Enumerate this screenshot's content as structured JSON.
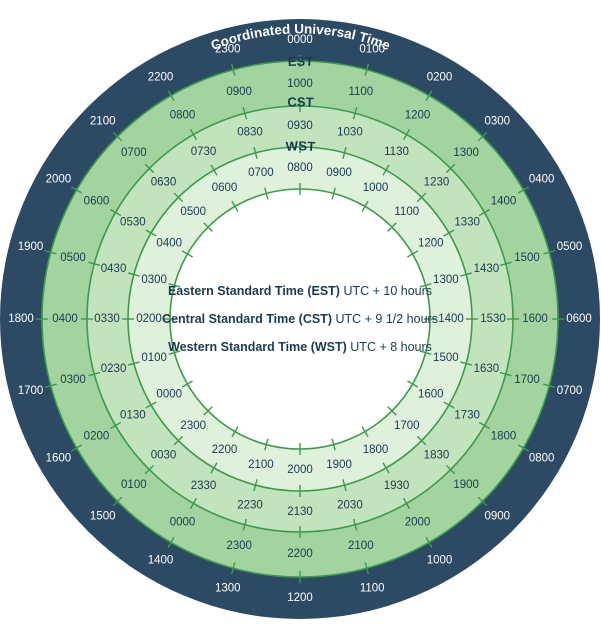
{
  "title": "Coordinated Universal Time",
  "colors": {
    "utc_ring": "#2d4a64",
    "est_ring": "#a3d49f",
    "cst_ring": "#c2e4bd",
    "wst_ring": "#dff1db",
    "center": "#ffffff",
    "divider": "#3e9a4e",
    "utc_text": "#ffffff",
    "ring_text": "#1a3a52"
  },
  "rings": [
    {
      "id": "utc",
      "title": "",
      "labels": [
        "0000",
        "0100",
        "0200",
        "0300",
        "0400",
        "0500",
        "0600",
        "0700",
        "0800",
        "0900",
        "1000",
        "1100",
        "1200",
        "1300",
        "1400",
        "1500",
        "1600",
        "1700",
        "1800",
        "1900",
        "2000",
        "2100",
        "2200",
        "2300"
      ]
    },
    {
      "id": "est",
      "title": "EST",
      "labels": [
        "1000",
        "1100",
        "1200",
        "1300",
        "1400",
        "1500",
        "1600",
        "1700",
        "1800",
        "1900",
        "2000",
        "2100",
        "2200",
        "2300",
        "0000",
        "0100",
        "0200",
        "0300",
        "0400",
        "0500",
        "0600",
        "0700",
        "0800",
        "0900"
      ]
    },
    {
      "id": "cst",
      "title": "CST",
      "labels": [
        "0930",
        "1030",
        "1130",
        "1230",
        "1330",
        "1430",
        "1530",
        "1630",
        "1730",
        "1830",
        "1930",
        "2030",
        "2130",
        "2230",
        "2330",
        "0030",
        "0130",
        "0230",
        "0330",
        "0430",
        "0530",
        "0630",
        "0730",
        "0830"
      ]
    },
    {
      "id": "wst",
      "title": "WST",
      "labels": [
        "0800",
        "0900",
        "1000",
        "1100",
        "1200",
        "1300",
        "1400",
        "1500",
        "1600",
        "1700",
        "1800",
        "1900",
        "2000",
        "2100",
        "2200",
        "2300",
        "0000",
        "0100",
        "0200",
        "0300",
        "0400",
        "0500",
        "0600",
        "0700"
      ]
    }
  ],
  "legend": [
    {
      "zone": "Eastern Standard Time (EST)",
      "offset": "UTC + 10 hours"
    },
    {
      "zone": "Central Standard Time (CST)",
      "offset": "UTC + 9 1/2 hours"
    },
    {
      "zone": "Western Standard Time (WST)",
      "offset": "UTC + 8 hours"
    }
  ]
}
